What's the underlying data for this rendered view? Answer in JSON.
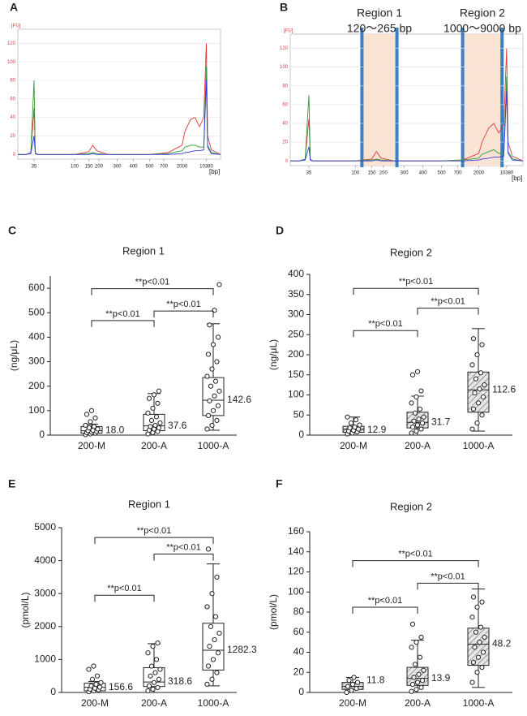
{
  "chart_data": [
    {
      "panel": "A",
      "type": "line",
      "xlabel": "[bp]",
      "ylabel": "[FU]",
      "x": [
        25,
        30,
        33,
        35,
        37,
        40,
        100,
        150,
        170,
        190,
        250,
        500,
        1000,
        2000,
        3000,
        5000,
        6500,
        8000,
        9500,
        10380,
        10800,
        12000,
        15000
      ],
      "xlim": [
        25,
        15000
      ],
      "xticks": [
        35,
        100,
        150,
        200,
        300,
        400,
        500,
        700,
        2000,
        10380
      ],
      "ylim": [
        -5,
        130
      ],
      "yticks": [
        0,
        20,
        40,
        60,
        80,
        100,
        120
      ],
      "series": [
        {
          "color": "#e03a3a",
          "values": [
            0,
            0,
            2,
            50,
            2,
            0,
            0,
            3,
            10,
            4,
            0,
            0,
            2,
            10,
            25,
            38,
            40,
            30,
            40,
            120,
            20,
            5,
            0
          ]
        },
        {
          "color": "#2f9a3a",
          "values": [
            0,
            0,
            2,
            80,
            2,
            0,
            0,
            1,
            2,
            1,
            0,
            0,
            1,
            4,
            8,
            10,
            10,
            8,
            8,
            95,
            10,
            2,
            0
          ]
        },
        {
          "color": "#3a3ad8",
          "values": [
            0,
            0,
            1,
            20,
            1,
            0,
            0,
            0,
            1,
            0,
            0,
            0,
            0,
            1,
            2,
            3,
            4,
            4,
            5,
            80,
            8,
            1,
            0
          ]
        }
      ]
    },
    {
      "panel": "B",
      "type": "line",
      "xlabel": "[bp]",
      "ylabel": "[FU]",
      "x": [
        25,
        30,
        33,
        35,
        37,
        40,
        100,
        150,
        170,
        190,
        250,
        500,
        1000,
        2000,
        3000,
        5000,
        6500,
        8000,
        9500,
        10380,
        10800,
        12000,
        15000
      ],
      "xlim": [
        25,
        15000
      ],
      "xticks": [
        35,
        100,
        150,
        200,
        300,
        400,
        500,
        700,
        2000,
        10380
      ],
      "ylim": [
        -5,
        130
      ],
      "yticks": [
        0,
        20,
        40,
        60,
        80,
        100,
        120
      ],
      "series": [
        {
          "color": "#e03a3a",
          "values": [
            0,
            0,
            2,
            45,
            2,
            0,
            0,
            2,
            10,
            3,
            0,
            0,
            1,
            8,
            20,
            35,
            40,
            30,
            38,
            120,
            20,
            5,
            0
          ]
        },
        {
          "color": "#2f9a3a",
          "values": [
            0,
            0,
            2,
            70,
            2,
            0,
            0,
            1,
            2,
            1,
            0,
            0,
            1,
            3,
            7,
            10,
            12,
            8,
            8,
            90,
            10,
            2,
            0
          ]
        },
        {
          "color": "#3a3ad8",
          "values": [
            0,
            0,
            1,
            15,
            1,
            0,
            0,
            0,
            1,
            0,
            0,
            0,
            0,
            1,
            2,
            3,
            4,
            4,
            5,
            75,
            8,
            1,
            0
          ]
        }
      ],
      "regions": [
        {
          "label": "Region 1",
          "range_label": "120～265 bp",
          "range": [
            120,
            265
          ]
        },
        {
          "label": "Region 2",
          "range_label": "1000～9000 bp",
          "range": [
            1000,
            9000
          ]
        }
      ],
      "region_fill": "#fbe3d4",
      "region_line": "#3b7fc4"
    },
    {
      "panel": "C",
      "type": "box",
      "title": "Region 1",
      "ylabel": "(ng/μL)",
      "pattern": "none",
      "ylim": [
        0,
        650
      ],
      "yticks": [
        0,
        100,
        200,
        300,
        400,
        500,
        600
      ],
      "categories": [
        "200-M",
        "200-A",
        "1000-A"
      ],
      "groups": [
        {
          "low": 0,
          "q1": 8,
          "median": 18,
          "q3": 35,
          "high": 45,
          "mean": 18.0,
          "mean_label": "18.0",
          "points": [
            2,
            5,
            8,
            10,
            12,
            15,
            18,
            20,
            25,
            30,
            35,
            40,
            55,
            70,
            85,
            100
          ]
        },
        {
          "low": 0,
          "q1": 18,
          "median": 37.6,
          "q3": 85,
          "high": 170,
          "mean": 37.6,
          "mean_label": "37.6",
          "points": [
            5,
            10,
            15,
            20,
            25,
            30,
            35,
            40,
            50,
            60,
            75,
            90,
            110,
            130,
            150,
            165,
            180
          ]
        },
        {
          "low": 20,
          "q1": 80,
          "median": 142.6,
          "q3": 235,
          "high": 455,
          "mean": 142.6,
          "mean_label": "142.6",
          "points": [
            25,
            40,
            60,
            80,
            100,
            120,
            140,
            160,
            180,
            200,
            220,
            240,
            270,
            300,
            330,
            370,
            400,
            450,
            510,
            615
          ]
        }
      ],
      "brackets": [
        {
          "between": [
            "200-M",
            "200-A"
          ],
          "text": "**p<0.01"
        },
        {
          "between": [
            "200-A",
            "1000-A"
          ],
          "text": "**p<0.01"
        },
        {
          "between": [
            "200-M",
            "1000-A"
          ],
          "text": "**p<0.01"
        }
      ]
    },
    {
      "panel": "D",
      "type": "box",
      "title": "Region 2",
      "ylabel": "(ng/μL)",
      "pattern": "hatch",
      "ylim": [
        0,
        400
      ],
      "yticks": [
        0,
        50,
        100,
        150,
        200,
        250,
        300,
        350,
        400
      ],
      "categories": [
        "200-M",
        "200-A",
        "1000-A"
      ],
      "groups": [
        {
          "low": 0,
          "q1": 7,
          "median": 15,
          "q3": 22,
          "high": 45,
          "mean": 12.9,
          "mean_label": "12.9",
          "points": [
            3,
            5,
            8,
            10,
            12,
            15,
            18,
            20,
            25,
            30,
            38,
            45
          ]
        },
        {
          "low": 0,
          "q1": 18,
          "median": 31.7,
          "q3": 57,
          "high": 97,
          "mean": 31.7,
          "mean_label": "31.7",
          "points": [
            5,
            10,
            15,
            20,
            25,
            30,
            35,
            40,
            45,
            55,
            65,
            80,
            95,
            110,
            150,
            158
          ]
        },
        {
          "low": 10,
          "q1": 57,
          "median": 112.6,
          "q3": 157,
          "high": 265,
          "mean": 112.6,
          "mean_label": "112.6",
          "points": [
            15,
            30,
            50,
            65,
            80,
            95,
            105,
            115,
            125,
            140,
            155,
            175,
            200,
            225,
            240
          ]
        }
      ],
      "brackets": [
        {
          "between": [
            "200-M",
            "200-A"
          ],
          "text": "**p<0.01"
        },
        {
          "between": [
            "200-A",
            "1000-A"
          ],
          "text": "**p<0.01"
        },
        {
          "between": [
            "200-M",
            "1000-A"
          ],
          "text": "**p<0.01"
        }
      ]
    },
    {
      "panel": "E",
      "type": "box",
      "title": "Region 1",
      "ylabel": "(pmol/L)",
      "pattern": "none",
      "ylim": [
        0,
        5000
      ],
      "yticks": [
        0,
        1000,
        2000,
        3000,
        4000,
        5000
      ],
      "categories": [
        "200-M",
        "200-A",
        "1000-A"
      ],
      "groups": [
        {
          "low": 0,
          "q1": 50,
          "median": 156.6,
          "q3": 280,
          "high": 330,
          "mean": 156.6,
          "mean_label": "156.6",
          "points": [
            20,
            50,
            80,
            100,
            130,
            160,
            200,
            250,
            300,
            400,
            500,
            700,
            800
          ]
        },
        {
          "low": 0,
          "q1": 180,
          "median": 318.6,
          "q3": 750,
          "high": 1480,
          "mean": 318.6,
          "mean_label": "318.6",
          "points": [
            50,
            100,
            150,
            200,
            300,
            400,
            500,
            600,
            700,
            800,
            1000,
            1200,
            1400,
            1500
          ]
        },
        {
          "low": 200,
          "q1": 680,
          "median": 1282.3,
          "q3": 2100,
          "high": 3900,
          "mean": 1282.3,
          "mean_label": "1282.3",
          "points": [
            250,
            400,
            600,
            800,
            1000,
            1200,
            1400,
            1600,
            1800,
            2000,
            2300,
            2600,
            3000,
            3500,
            4350
          ]
        }
      ],
      "brackets": [
        {
          "between": [
            "200-M",
            "200-A"
          ],
          "text": "**p<0.01"
        },
        {
          "between": [
            "200-A",
            "1000-A"
          ],
          "text": "**p<0.01"
        },
        {
          "between": [
            "200-M",
            "1000-A"
          ],
          "text": "**p<0.01"
        }
      ]
    },
    {
      "panel": "F",
      "type": "box",
      "title": "Region 2",
      "ylabel": "(pmol/L)",
      "pattern": "hatch",
      "ylim": [
        0,
        160
      ],
      "yticks": [
        0,
        20,
        40,
        60,
        80,
        100,
        120,
        140,
        160
      ],
      "categories": [
        "200-M",
        "200-A",
        "1000-A"
      ],
      "groups": [
        {
          "low": 0,
          "q1": 3,
          "median": 6,
          "q3": 10,
          "high": 15,
          "mean": 11.8,
          "mean_label": "11.8",
          "points": [
            0,
            2,
            4,
            6,
            8,
            10,
            12,
            15
          ]
        },
        {
          "low": 0,
          "q1": 7,
          "median": 14,
          "q3": 25,
          "high": 52,
          "mean": 13.9,
          "mean_label": "13.9",
          "points": [
            1,
            3,
            5,
            8,
            10,
            12,
            15,
            18,
            22,
            28,
            35,
            45,
            50,
            55,
            68
          ]
        },
        {
          "low": 5,
          "q1": 27,
          "median": 48,
          "q3": 64,
          "high": 103,
          "mean": 48.2,
          "mean_label": "48.2",
          "points": [
            10,
            20,
            25,
            30,
            35,
            40,
            45,
            50,
            55,
            60,
            65,
            75,
            85,
            90,
            95
          ]
        }
      ],
      "brackets": [
        {
          "between": [
            "200-M",
            "200-A"
          ],
          "text": "**p<0.01"
        },
        {
          "between": [
            "200-A",
            "1000-A"
          ],
          "text": "**p<0.01"
        },
        {
          "between": [
            "200-M",
            "1000-A"
          ],
          "text": "**p<0.01"
        }
      ]
    }
  ]
}
